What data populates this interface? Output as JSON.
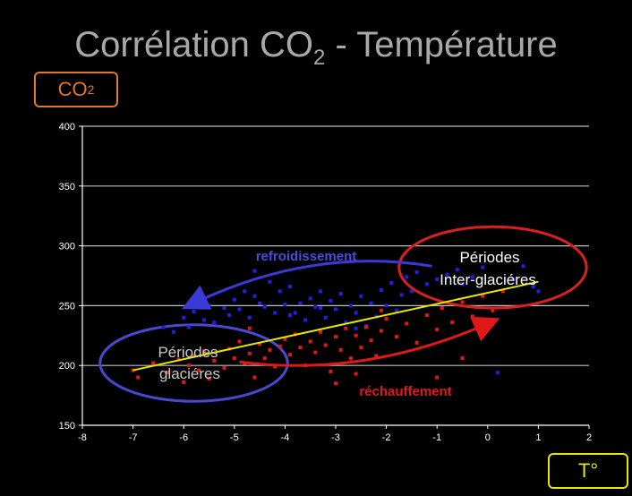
{
  "slide": {
    "title_main": "Corrélation CO",
    "title_sub": "2",
    "title_tail": " - Température",
    "ylabel_main": "CO",
    "ylabel_sub": "2",
    "xlabel": "T°"
  },
  "annotations": {
    "refroidissement": "refroidissement",
    "rechauffement": "réchauffement",
    "glacial_line1": "Périodes",
    "glacial_line2": "glaciéres",
    "interglacial_line1": "Périodes",
    "interglacial_line2": "Inter-glaciéres"
  },
  "colors": {
    "background": "#000000",
    "cooling": "#3a3ad8",
    "warming": "#e01818",
    "trend": "#e6e600",
    "title": "#a8a8a8",
    "co2_box": "#e07828",
    "temp_box": "#e6e600"
  },
  "chart_data": {
    "type": "scatter",
    "xlim": [
      -8,
      2
    ],
    "ylim": [
      150,
      400
    ],
    "xticks": [
      -8,
      -7,
      -6,
      -5,
      -4,
      -3,
      -2,
      -1,
      0,
      1,
      2
    ],
    "yticks": [
      150,
      200,
      250,
      300,
      350,
      400
    ],
    "grid": true,
    "series": [
      {
        "color": "#2020e0",
        "points": [
          [
            -6.4,
            232
          ],
          [
            -6.2,
            228
          ],
          [
            -6.0,
            240
          ],
          [
            -5.8,
            245
          ],
          [
            -5.6,
            238
          ],
          [
            -5.5,
            250
          ],
          [
            -5.4,
            236
          ],
          [
            -5.2,
            248
          ],
          [
            -5.1,
            242
          ],
          [
            -5.0,
            255
          ],
          [
            -4.9,
            247
          ],
          [
            -4.8,
            262
          ],
          [
            -4.7,
            240
          ],
          [
            -4.6,
            258
          ],
          [
            -4.5,
            252
          ],
          [
            -4.4,
            249
          ],
          [
            -4.3,
            270
          ],
          [
            -4.2,
            244
          ],
          [
            -4.1,
            262
          ],
          [
            -4.0,
            251
          ],
          [
            -3.9,
            266
          ],
          [
            -3.8,
            244
          ],
          [
            -3.7,
            252
          ],
          [
            -3.6,
            238
          ],
          [
            -3.5,
            256
          ],
          [
            -3.4,
            249
          ],
          [
            -3.3,
            262
          ],
          [
            -3.2,
            240
          ],
          [
            -3.1,
            254
          ],
          [
            -3.0,
            247
          ],
          [
            -2.9,
            260
          ],
          [
            -2.8,
            236
          ],
          [
            -2.7,
            250
          ],
          [
            -2.6,
            244
          ],
          [
            -2.5,
            258
          ],
          [
            -2.4,
            233
          ],
          [
            -2.3,
            252
          ],
          [
            -2.2,
            241
          ],
          [
            -2.1,
            263
          ],
          [
            -2.0,
            250
          ],
          [
            -1.9,
            269
          ],
          [
            -1.8,
            246
          ],
          [
            -1.7,
            259
          ],
          [
            -1.6,
            274
          ],
          [
            -1.5,
            262
          ],
          [
            -1.4,
            278
          ],
          [
            -1.2,
            268
          ],
          [
            -1.0,
            272
          ],
          [
            -0.8,
            276
          ],
          [
            -0.6,
            280
          ],
          [
            -0.5,
            268
          ],
          [
            -0.3,
            274
          ],
          [
            -0.1,
            282
          ],
          [
            0.2,
            194
          ],
          [
            0.5,
            272
          ],
          [
            0.7,
            283
          ],
          [
            0.9,
            266
          ],
          [
            1.0,
            262
          ],
          [
            -4.6,
            279
          ],
          [
            -3.9,
            242
          ],
          [
            -2.6,
            231
          ],
          [
            -5.9,
            232
          ],
          [
            -3.3,
            248
          ]
        ]
      },
      {
        "color": "#e01818",
        "points": [
          [
            -7.0,
            196
          ],
          [
            -6.9,
            190
          ],
          [
            -6.6,
            202
          ],
          [
            -6.3,
            194
          ],
          [
            -6.1,
            205
          ],
          [
            -6.0,
            186
          ],
          [
            -5.9,
            200
          ],
          [
            -5.8,
            208
          ],
          [
            -5.7,
            196
          ],
          [
            -5.6,
            212
          ],
          [
            -5.5,
            189
          ],
          [
            -5.4,
            204
          ],
          [
            -5.2,
            198
          ],
          [
            -5.1,
            214
          ],
          [
            -5.0,
            206
          ],
          [
            -4.9,
            220
          ],
          [
            -4.8,
            202
          ],
          [
            -4.7,
            210
          ],
          [
            -4.6,
            190
          ],
          [
            -4.5,
            218
          ],
          [
            -4.4,
            206
          ],
          [
            -4.3,
            213
          ],
          [
            -4.2,
            199
          ],
          [
            -4.1,
            216
          ],
          [
            -4.0,
            222
          ],
          [
            -3.9,
            209
          ],
          [
            -3.8,
            226
          ],
          [
            -3.7,
            215
          ],
          [
            -3.6,
            200
          ],
          [
            -3.5,
            220
          ],
          [
            -3.4,
            211
          ],
          [
            -3.3,
            228
          ],
          [
            -3.2,
            217
          ],
          [
            -3.1,
            195
          ],
          [
            -3.0,
            224
          ],
          [
            -2.9,
            213
          ],
          [
            -2.8,
            231
          ],
          [
            -2.7,
            206
          ],
          [
            -2.6,
            225
          ],
          [
            -2.5,
            215
          ],
          [
            -2.4,
            232
          ],
          [
            -2.3,
            221
          ],
          [
            -2.2,
            208
          ],
          [
            -2.1,
            229
          ],
          [
            -2.0,
            239
          ],
          [
            -1.8,
            224
          ],
          [
            -1.6,
            235
          ],
          [
            -1.4,
            219
          ],
          [
            -1.2,
            242
          ],
          [
            -1.0,
            230
          ],
          [
            -0.9,
            248
          ],
          [
            -0.7,
            236
          ],
          [
            -0.5,
            253
          ],
          [
            -0.3,
            241
          ],
          [
            -0.1,
            258
          ],
          [
            0.1,
            246
          ],
          [
            0.3,
            262
          ],
          [
            -1.0,
            190
          ],
          [
            -2.6,
            193
          ],
          [
            -4.7,
            231
          ],
          [
            -3.0,
            185
          ],
          [
            -0.5,
            206
          ],
          [
            -2.1,
            246
          ]
        ]
      }
    ],
    "trendline": {
      "color": "#e6e600",
      "from": [
        -7.0,
        196
      ],
      "to": [
        1.0,
        270
      ]
    },
    "ellipses": [
      {
        "label": "glacial",
        "center": [
          -5.8,
          202
        ],
        "rx": 1.85,
        "ry": 32,
        "color": "#4848d0"
      },
      {
        "label": "interglacial",
        "center": [
          0.1,
          282
        ],
        "rx": 1.85,
        "ry": 34,
        "color": "#d82020"
      }
    ],
    "arrows": [
      {
        "label": "refroidissement",
        "from": [
          -1.1,
          283
        ],
        "to": [
          -5.8,
          252
        ],
        "color": "#3a3ad8"
      },
      {
        "label": "réchauffement",
        "from": [
          -4.9,
          203
        ],
        "to": [
          0.0,
          235
        ],
        "color": "#e01818"
      }
    ]
  }
}
